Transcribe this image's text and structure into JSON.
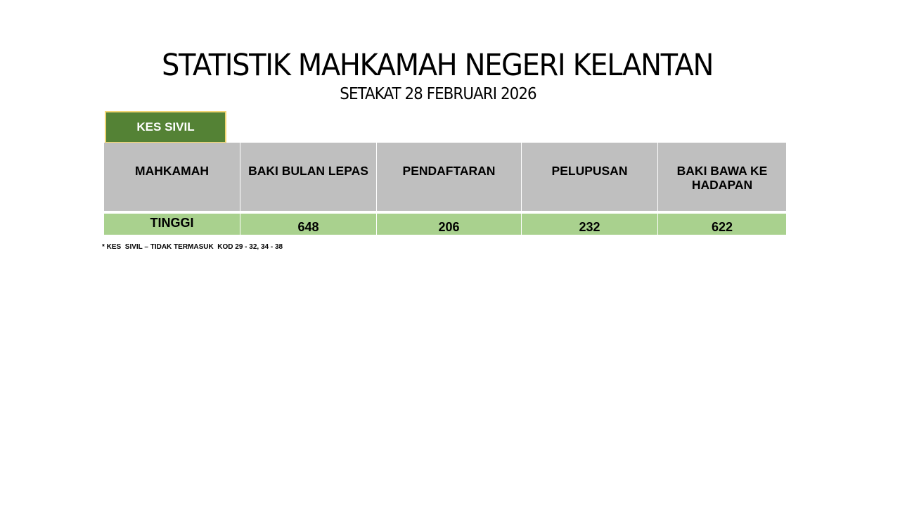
{
  "title": "STATISTIK MAHKAMAH NEGERI KELANTAN",
  "subtitle": "SETAKAT 28 FEBRUARI 2026",
  "badge": "KES SIVIL",
  "table": {
    "headers": [
      "MAHKAMAH",
      "BAKI BULAN LEPAS",
      "PENDAFTARAN",
      "PELUPUSAN",
      "BAKI BAWA KE HADAPAN"
    ],
    "rows": [
      [
        "TINGGI",
        "648",
        "206",
        "232",
        "622"
      ]
    ]
  },
  "footnote": "* KES  SIVIL – TIDAK TERMASUK  KOD 29 - 32, 34 - 38",
  "colors": {
    "badge": "#548235",
    "header": "#bfbfbf",
    "row": "#a9d18e"
  }
}
